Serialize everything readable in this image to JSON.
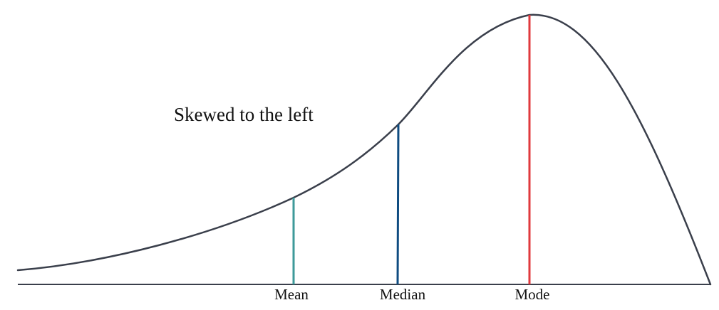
{
  "title": "Skewed to the left",
  "curve": {
    "color": "#3a3f4b"
  },
  "baseline": {
    "color": "#3a3f4b"
  },
  "markers": {
    "mean": {
      "label": "Mean",
      "color": "#3e9a9a"
    },
    "median": {
      "label": "Median",
      "color": "#0f4c81"
    },
    "mode": {
      "label": "Mode",
      "color": "#e0393e"
    }
  }
}
